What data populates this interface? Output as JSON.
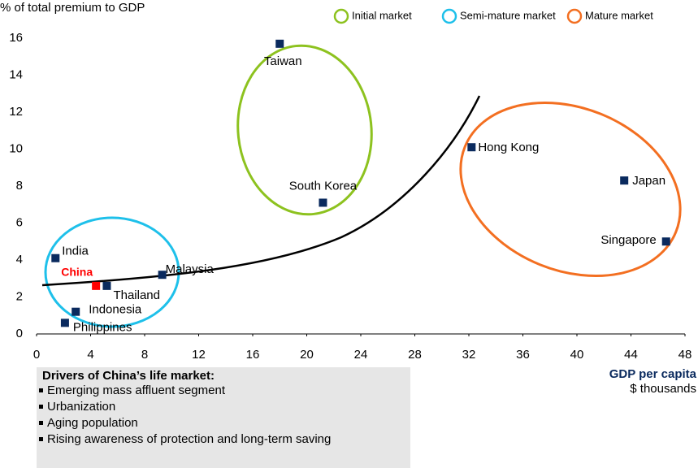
{
  "chart_data": {
    "type": "scatter",
    "y_axis_label": "% of total premium to GDP",
    "x_axis_label": "GDP per capita",
    "x_axis_unit": "$ thousands",
    "xlim": [
      0,
      48
    ],
    "xticks": [
      0,
      4,
      8,
      12,
      16,
      20,
      24,
      28,
      32,
      36,
      40,
      44,
      48
    ],
    "ylim": [
      0,
      16
    ],
    "yticks": [
      0,
      2,
      4,
      6,
      8,
      10,
      12,
      14,
      16
    ],
    "legend": [
      {
        "name": "Initial market",
        "color": "#8dc21f"
      },
      {
        "name": "Semi-mature  market",
        "color": "#1ec0ea"
      },
      {
        "name": "Mature market",
        "color": "#f36f21"
      }
    ],
    "series": [
      {
        "labels": [
          "Taiwan",
          "South Korea",
          "Hong Kong",
          "Japan",
          "Singapore",
          "India",
          "China",
          "Malaysia",
          "Thailand",
          "Indonesia",
          "Philippines"
        ],
        "x": [
          18.0,
          21.2,
          32.2,
          43.5,
          46.6,
          1.4,
          4.4,
          9.3,
          5.2,
          2.9,
          2.1
        ],
        "values": [
          15.7,
          7.1,
          10.1,
          8.3,
          5.0,
          4.1,
          2.6,
          3.2,
          2.6,
          1.2,
          0.6
        ],
        "colors": [
          "#0a2a5e",
          "#0a2a5e",
          "#0a2a5e",
          "#0a2a5e",
          "#0a2a5e",
          "#0a2a5e",
          "#ff0000",
          "#0a2a5e",
          "#0a2a5e",
          "#0a2a5e",
          "#0a2a5e"
        ]
      }
    ]
  },
  "notes": {
    "title": "Drivers of China’s life market:",
    "items": [
      "Emerging mass affluent segment",
      "Urbanization",
      "Aging population",
      "Rising awareness of protection and long-term saving"
    ]
  }
}
